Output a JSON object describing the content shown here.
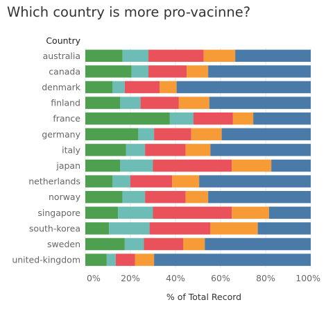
{
  "title": "Which country is more pro-vacinne?",
  "chart_data": {
    "type": "bar",
    "orientation": "horizontal",
    "stacked": true,
    "row_header": "Country",
    "xlabel": "% of Total Record",
    "xlim": [
      0,
      100
    ],
    "xticks": [
      "0%",
      "20%",
      "40%",
      "60%",
      "80%",
      "100%"
    ],
    "xtick_values": [
      0,
      20,
      40,
      60,
      80,
      100
    ],
    "colors": [
      "#4e9f50",
      "#6dbdb6",
      "#e9525a",
      "#f69b36",
      "#4a7aa8"
    ],
    "categories": [
      "australia",
      "canada",
      "denmark",
      "finland",
      "france",
      "germany",
      "italy",
      "japan",
      "netherlands",
      "norway",
      "singapore",
      "south-korea",
      "sweden",
      "united-kingdom"
    ],
    "series": [
      {
        "values": [
          16.5,
          20.5,
          12,
          15.5,
          37.5,
          23.5,
          18,
          15.5,
          12,
          16.5,
          14.5,
          10.5,
          17.5,
          9.5
        ]
      },
      {
        "values": [
          11.5,
          7.5,
          5.5,
          9,
          10.5,
          7,
          8.5,
          14.5,
          8,
          10,
          15.5,
          18,
          8.5,
          4
        ]
      },
      {
        "values": [
          24.5,
          17,
          15.5,
          17,
          17.5,
          16.5,
          18,
          35,
          18.5,
          18,
          35,
          27,
          17.5,
          8.5
        ]
      },
      {
        "values": [
          14,
          9.5,
          7.5,
          13.5,
          9,
          13.5,
          11,
          17.5,
          12,
          10,
          16.5,
          21,
          9.5,
          8.5
        ]
      },
      {
        "values": [
          33.5,
          45.5,
          59.5,
          45,
          25.5,
          39.5,
          44.5,
          17.5,
          49.5,
          45.5,
          18.5,
          23.5,
          47,
          69.5
        ]
      }
    ]
  }
}
